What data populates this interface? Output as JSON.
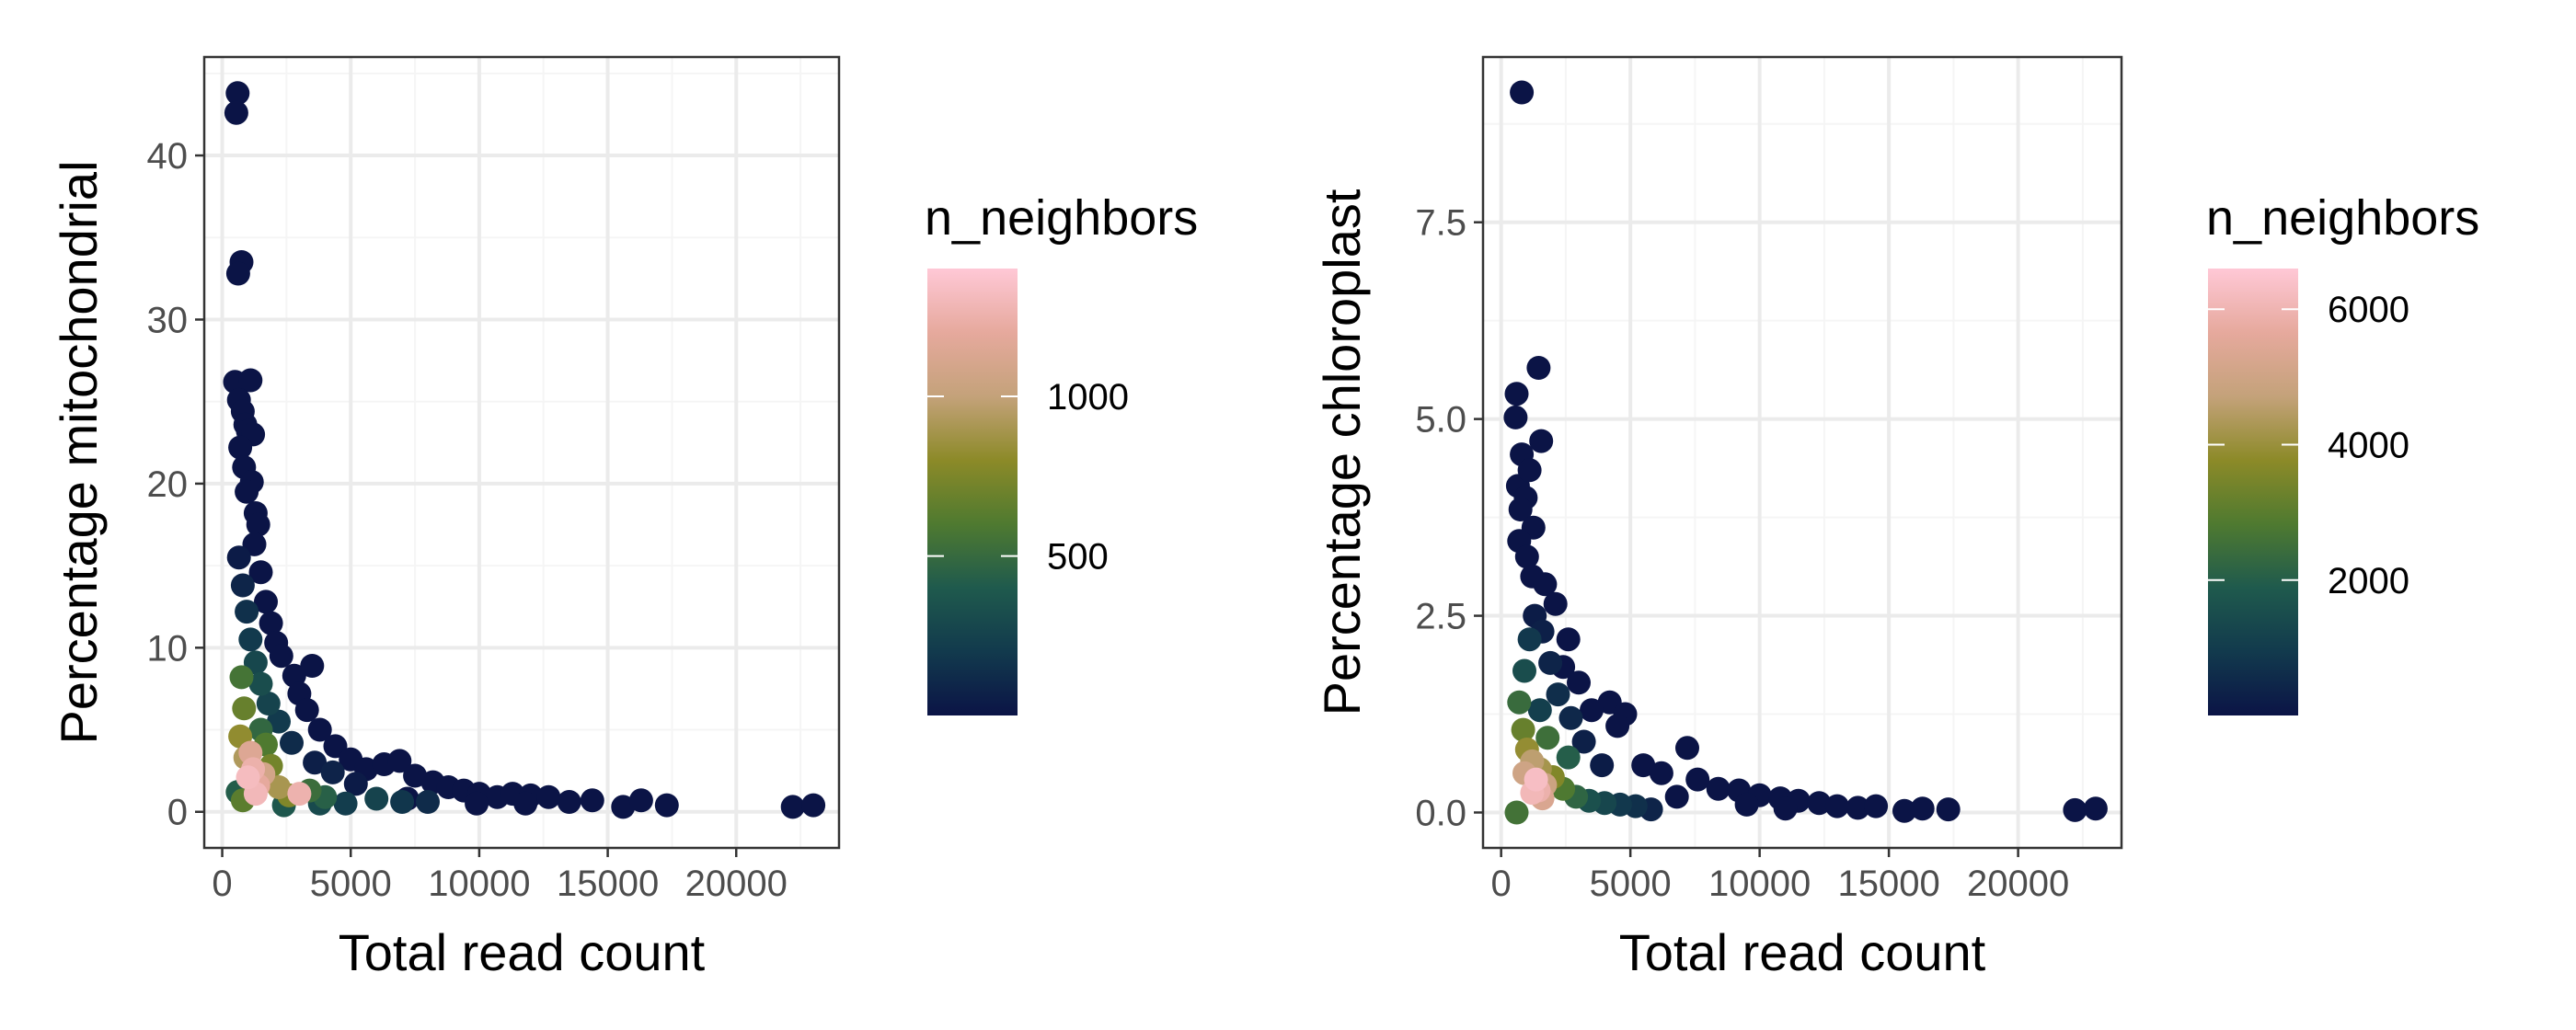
{
  "colors": {
    "panel_border": "#333333",
    "grid_major": "#ebebeb",
    "grid_minor": "#f5f5f5",
    "tick_text": "#4d4d4d",
    "label_text": "#000000",
    "gradient_low": "#0b1446",
    "gradient_stops": [
      "#0b1446",
      "#123a4d",
      "#1f5a4d",
      "#4f7a30",
      "#8c8a28",
      "#c4a27a",
      "#e6a99d",
      "#ffc8d6"
    ]
  },
  "chart_data": [
    {
      "type": "scatter",
      "xlabel": "Total read count",
      "ylabel": "Percentage mitochondrial",
      "xlim": [
        -700,
        24000
      ],
      "ylim": [
        -2.2,
        46
      ],
      "xticks": [
        0,
        5000,
        10000,
        15000,
        20000
      ],
      "xtick_labels": [
        "0",
        "5000",
        "10000",
        "15000",
        "20000"
      ],
      "yticks": [
        0,
        10,
        20,
        30,
        40
      ],
      "ytick_labels": [
        "0",
        "10",
        "20",
        "30",
        "40"
      ],
      "grid": true,
      "legend": {
        "title": "n_neighbors",
        "position": "right",
        "range": [
          1,
          1400
        ],
        "ticks": [
          500,
          1000
        ],
        "tick_labels": [
          "500",
          "1000"
        ]
      },
      "points": [
        [
          600,
          43.8,
          1
        ],
        [
          550,
          42.6,
          1
        ],
        [
          750,
          33.5,
          1
        ],
        [
          620,
          32.8,
          1
        ],
        [
          500,
          26.2,
          1
        ],
        [
          1100,
          26.3,
          1
        ],
        [
          650,
          25.1,
          1
        ],
        [
          800,
          24.4,
          1
        ],
        [
          900,
          23.6,
          1
        ],
        [
          1000,
          23.2,
          1
        ],
        [
          1200,
          23.0,
          1
        ],
        [
          700,
          22.2,
          1
        ],
        [
          850,
          21.0,
          1
        ],
        [
          1150,
          20.1,
          1
        ],
        [
          950,
          19.5,
          1
        ],
        [
          1300,
          18.2,
          1
        ],
        [
          1400,
          17.5,
          1
        ],
        [
          1250,
          16.3,
          1
        ],
        [
          1500,
          14.6,
          1
        ],
        [
          1700,
          12.8,
          1
        ],
        [
          1900,
          11.5,
          1
        ],
        [
          2100,
          10.3,
          1
        ],
        [
          2300,
          9.5,
          1
        ],
        [
          3500,
          8.9,
          1
        ],
        [
          2800,
          8.3,
          1
        ],
        [
          3000,
          7.2,
          1
        ],
        [
          3300,
          6.2,
          1
        ],
        [
          3800,
          5.0,
          1
        ],
        [
          4400,
          4.0,
          1
        ],
        [
          5000,
          3.2,
          1
        ],
        [
          5600,
          2.6,
          1
        ],
        [
          6300,
          2.9,
          1
        ],
        [
          6900,
          3.1,
          1
        ],
        [
          7500,
          2.2,
          1
        ],
        [
          8200,
          1.8,
          1
        ],
        [
          8800,
          1.5,
          1
        ],
        [
          9400,
          1.3,
          1
        ],
        [
          10000,
          1.1,
          1
        ],
        [
          10700,
          0.9,
          1
        ],
        [
          11300,
          1.1,
          1
        ],
        [
          12000,
          1.0,
          1
        ],
        [
          12700,
          0.9,
          1
        ],
        [
          13500,
          0.6,
          1
        ],
        [
          14400,
          0.7,
          1
        ],
        [
          15600,
          0.3,
          1
        ],
        [
          16300,
          0.7,
          1
        ],
        [
          17300,
          0.4,
          1
        ],
        [
          22200,
          0.3,
          1
        ],
        [
          23000,
          0.4,
          1
        ],
        [
          9900,
          0.5,
          1
        ],
        [
          11800,
          0.5,
          1
        ],
        [
          7200,
          0.8,
          1
        ],
        [
          5200,
          1.7,
          40
        ],
        [
          4300,
          2.4,
          80
        ],
        [
          3600,
          3.0,
          60
        ],
        [
          2700,
          4.2,
          120
        ],
        [
          2200,
          5.5,
          200
        ],
        [
          1800,
          6.6,
          260
        ],
        [
          1500,
          7.8,
          320
        ],
        [
          1300,
          9.1,
          280
        ],
        [
          1100,
          10.5,
          200
        ],
        [
          950,
          12.2,
          150
        ],
        [
          800,
          13.8,
          90
        ],
        [
          650,
          15.5,
          40
        ],
        [
          750,
          8.2,
          560
        ],
        [
          850,
          6.3,
          680
        ],
        [
          700,
          4.6,
          820
        ],
        [
          900,
          3.3,
          930
        ],
        [
          1000,
          2.1,
          1320
        ],
        [
          1200,
          2.6,
          1250
        ],
        [
          1100,
          3.6,
          1150
        ],
        [
          1400,
          1.6,
          1200
        ],
        [
          1600,
          2.3,
          1080
        ],
        [
          1300,
          1.1,
          1300
        ],
        [
          3000,
          1.1,
          1260
        ],
        [
          2200,
          1.5,
          900
        ],
        [
          2600,
          1.0,
          760
        ],
        [
          3400,
          1.3,
          520
        ],
        [
          4000,
          0.9,
          440
        ],
        [
          1900,
          2.8,
          720
        ],
        [
          1700,
          4.1,
          600
        ],
        [
          1500,
          5.0,
          480
        ],
        [
          6000,
          0.8,
          260
        ],
        [
          7000,
          0.6,
          180
        ],
        [
          8000,
          0.6,
          120
        ],
        [
          600,
          1.2,
          420
        ],
        [
          800,
          0.7,
          640
        ],
        [
          2400,
          0.4,
          380
        ],
        [
          3800,
          0.5,
          300
        ],
        [
          4800,
          0.5,
          220
        ]
      ]
    },
    {
      "type": "scatter",
      "xlabel": "Total read count",
      "ylabel": "Percentage chloroplast",
      "xlim": [
        -700,
        24000
      ],
      "ylim": [
        -0.45,
        9.6
      ],
      "xticks": [
        0,
        5000,
        10000,
        15000,
        20000
      ],
      "xtick_labels": [
        "0",
        "5000",
        "10000",
        "15000",
        "20000"
      ],
      "yticks": [
        0,
        2.5,
        5,
        7.5
      ],
      "ytick_labels": [
        "0.0",
        "2.5",
        "5.0",
        "7.5"
      ],
      "grid": true,
      "legend": {
        "title": "n_neighbors",
        "position": "right",
        "range": [
          1,
          6600
        ],
        "ticks": [
          2000,
          4000,
          6000
        ],
        "tick_labels": [
          "2000",
          "4000",
          "6000"
        ]
      },
      "points": [
        [
          800,
          9.15,
          1
        ],
        [
          1450,
          5.65,
          1
        ],
        [
          600,
          5.32,
          1
        ],
        [
          560,
          5.02,
          1
        ],
        [
          1550,
          4.72,
          1
        ],
        [
          800,
          4.55,
          1
        ],
        [
          650,
          4.15,
          1
        ],
        [
          1100,
          4.35,
          1
        ],
        [
          950,
          4.0,
          1
        ],
        [
          750,
          3.85,
          1
        ],
        [
          1250,
          3.62,
          1
        ],
        [
          700,
          3.45,
          1
        ],
        [
          1000,
          3.25,
          1
        ],
        [
          1200,
          3.0,
          1
        ],
        [
          1700,
          2.9,
          1
        ],
        [
          2100,
          2.65,
          1
        ],
        [
          2600,
          2.2,
          1
        ],
        [
          2400,
          1.85,
          1
        ],
        [
          3000,
          1.65,
          1
        ],
        [
          4200,
          1.4,
          1
        ],
        [
          3500,
          1.3,
          1
        ],
        [
          4800,
          1.25,
          1
        ],
        [
          4500,
          1.1,
          1
        ],
        [
          7200,
          0.82,
          1
        ],
        [
          5500,
          0.6,
          1
        ],
        [
          6200,
          0.5,
          1
        ],
        [
          7600,
          0.42,
          1
        ],
        [
          8400,
          0.3,
          1
        ],
        [
          9200,
          0.28,
          1
        ],
        [
          10000,
          0.22,
          1
        ],
        [
          10800,
          0.18,
          1
        ],
        [
          11500,
          0.15,
          1
        ],
        [
          12300,
          0.12,
          1
        ],
        [
          13000,
          0.08,
          1
        ],
        [
          13800,
          0.06,
          1
        ],
        [
          14500,
          0.08,
          1
        ],
        [
          15600,
          0.02,
          1
        ],
        [
          16300,
          0.05,
          1
        ],
        [
          17300,
          0.04,
          1
        ],
        [
          22200,
          0.03,
          1
        ],
        [
          23000,
          0.05,
          1
        ],
        [
          11000,
          0.05,
          1
        ],
        [
          9500,
          0.1,
          1
        ],
        [
          6800,
          0.2,
          1
        ],
        [
          3900,
          0.6,
          200
        ],
        [
          3200,
          0.9,
          300
        ],
        [
          2700,
          1.2,
          500
        ],
        [
          2200,
          1.5,
          650
        ],
        [
          1900,
          1.9,
          400
        ],
        [
          1600,
          2.3,
          300
        ],
        [
          1300,
          2.5,
          200
        ],
        [
          1100,
          2.2,
          900
        ],
        [
          900,
          1.8,
          1500
        ],
        [
          700,
          1.4,
          2400
        ],
        [
          850,
          1.05,
          3200
        ],
        [
          1000,
          0.8,
          3900
        ],
        [
          1200,
          0.65,
          4600
        ],
        [
          1500,
          0.55,
          4200
        ],
        [
          1350,
          0.42,
          6300
        ],
        [
          1450,
          0.28,
          5900
        ],
        [
          1200,
          0.25,
          6100
        ],
        [
          1600,
          0.18,
          5300
        ],
        [
          1700,
          0.35,
          4900
        ],
        [
          900,
          0.5,
          5000
        ],
        [
          2000,
          0.45,
          3600
        ],
        [
          2400,
          0.3,
          2800
        ],
        [
          2900,
          0.2,
          2200
        ],
        [
          3400,
          0.15,
          1600
        ],
        [
          4000,
          0.12,
          1300
        ],
        [
          4600,
          0.1,
          900
        ],
        [
          5200,
          0.08,
          700
        ],
        [
          600,
          0.0,
          2600
        ],
        [
          2600,
          0.7,
          2000
        ],
        [
          1800,
          0.95,
          2500
        ],
        [
          1500,
          1.3,
          1100
        ],
        [
          5800,
          0.04,
          400
        ]
      ]
    }
  ]
}
